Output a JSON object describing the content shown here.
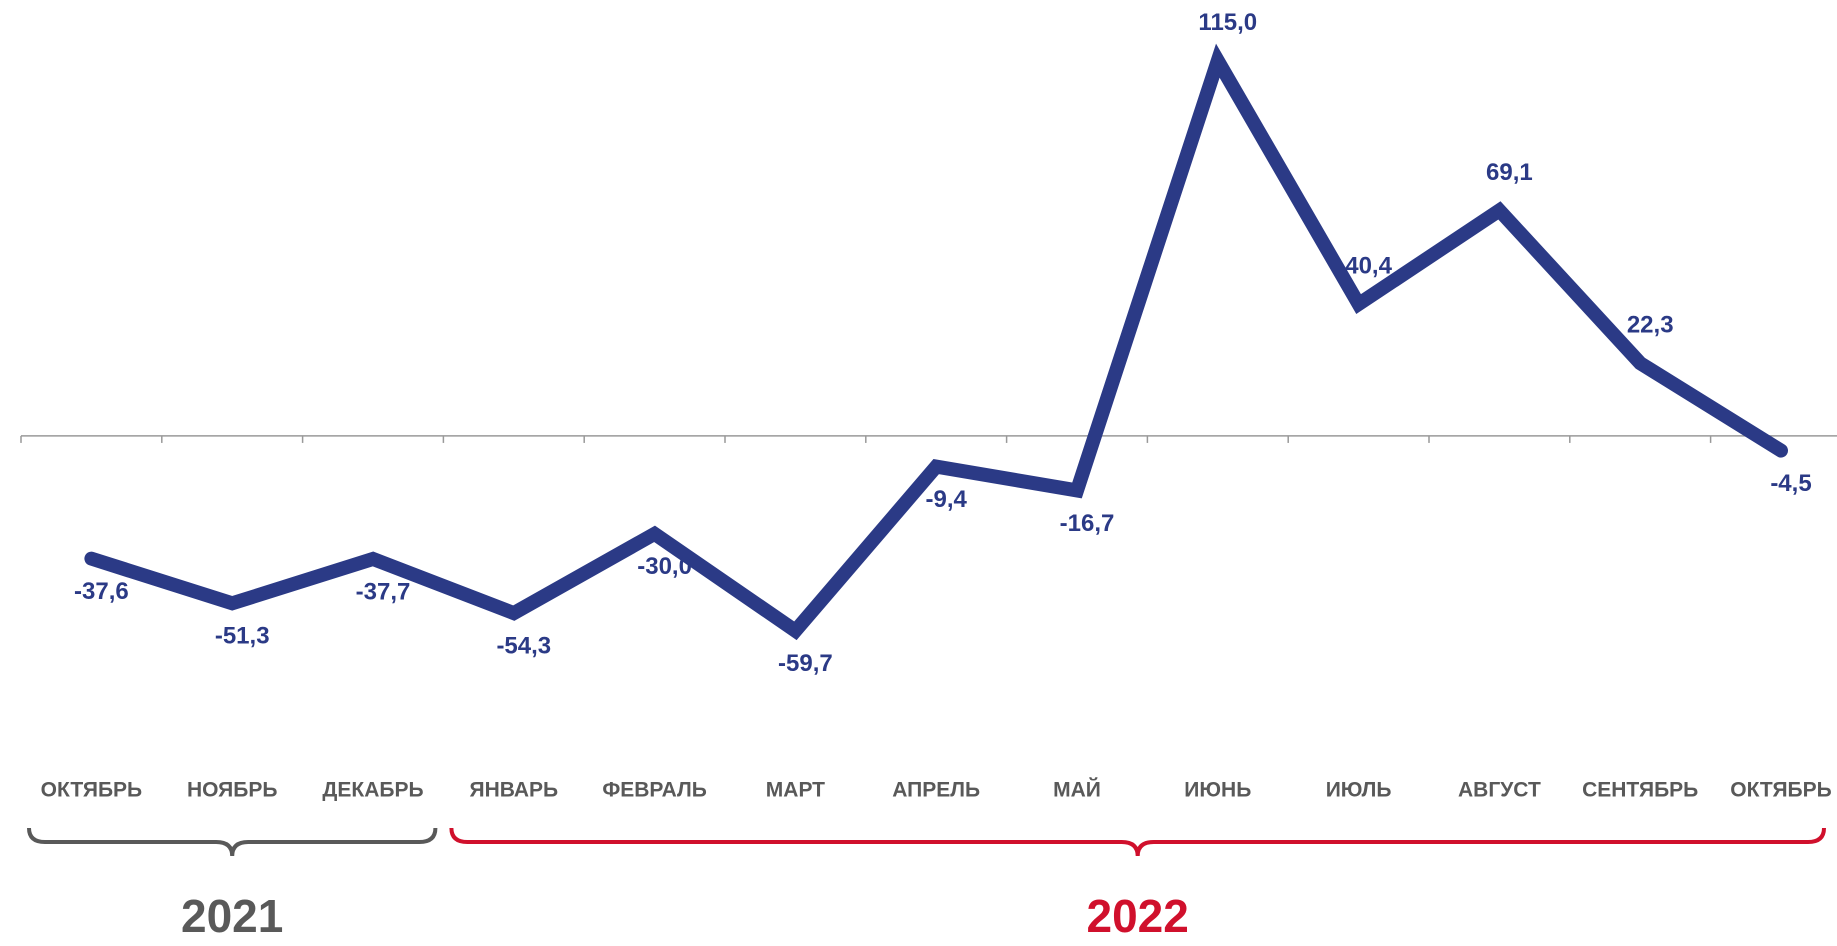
{
  "chart_data": {
    "type": "line",
    "categories": [
      "ОКТЯБРЬ",
      "НОЯБРЬ",
      "ДЕКАБРЬ",
      "ЯНВАРЬ",
      "ФЕВРАЛЬ",
      "МАРТ",
      "АПРЕЛЬ",
      "МАЙ",
      "ИЮНЬ",
      "ИЮЛЬ",
      "АВГУСТ",
      "СЕНТЯБРЬ",
      "ОКТЯБРЬ"
    ],
    "series": [
      {
        "color": "#2b3a86",
        "values": [
          -37.6,
          -51.3,
          -37.7,
          -54.3,
          -30.0,
          -59.7,
          -9.4,
          -16.7,
          115.0,
          40.4,
          69.1,
          22.3,
          -4.5
        ],
        "value_labels": [
          "-37,6",
          "-51,3",
          "-37,7",
          "-54,3",
          "-30,0",
          "-59,7",
          "-9,4",
          "-16,7",
          "115,0",
          "40,4",
          "69,1",
          "22,3",
          "-4,5"
        ]
      }
    ],
    "ylim": [
      -80,
      125
    ],
    "groups": [
      {
        "label": "2021",
        "color": "#595959",
        "span": [
          0,
          2
        ]
      },
      {
        "label": "2022",
        "color": "#d0102c",
        "span": [
          3,
          12
        ]
      }
    ]
  }
}
